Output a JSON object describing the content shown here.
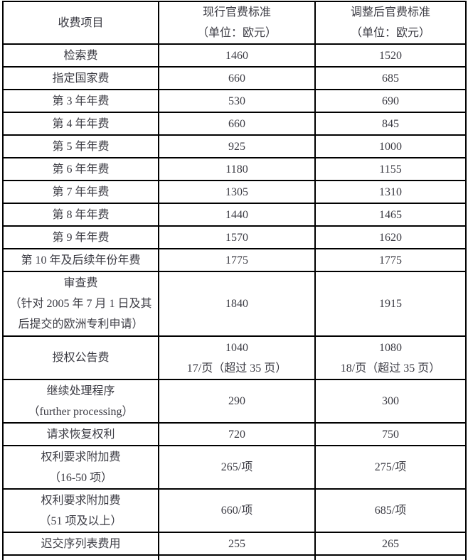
{
  "page": {
    "background": "#ffffff",
    "text_color": "#3b3b43",
    "border_color": "#000000"
  },
  "table": {
    "header": {
      "item": [
        "收费项目"
      ],
      "current": [
        "现行官费标准",
        "（单位：欧元）"
      ],
      "adjusted": [
        "调整后官费标准",
        "（单位：欧元）"
      ]
    },
    "rows": [
      {
        "item": [
          "检索费"
        ],
        "current": [
          "1460"
        ],
        "adjusted": [
          "1520"
        ]
      },
      {
        "item": [
          "指定国家费"
        ],
        "current": [
          "660"
        ],
        "adjusted": [
          "685"
        ]
      },
      {
        "item": [
          "第 3 年年费"
        ],
        "current": [
          "530"
        ],
        "adjusted": [
          "690"
        ]
      },
      {
        "item": [
          "第 4 年年费"
        ],
        "current": [
          "660"
        ],
        "adjusted": [
          "845"
        ]
      },
      {
        "item": [
          "第 5 年年费"
        ],
        "current": [
          "925"
        ],
        "adjusted": [
          "1000"
        ]
      },
      {
        "item": [
          "第 6 年年费"
        ],
        "current": [
          "1180"
        ],
        "adjusted": [
          "1155"
        ]
      },
      {
        "item": [
          "第 7 年年费"
        ],
        "current": [
          "1305"
        ],
        "adjusted": [
          "1310"
        ]
      },
      {
        "item": [
          "第 8 年年费"
        ],
        "current": [
          "1440"
        ],
        "adjusted": [
          "1465"
        ]
      },
      {
        "item": [
          "第 9 年年费"
        ],
        "current": [
          "1570"
        ],
        "adjusted": [
          "1620"
        ]
      },
      {
        "item": [
          "第 10 年及后续年份年费"
        ],
        "current": [
          "1775"
        ],
        "adjusted": [
          "1775"
        ]
      },
      {
        "item": [
          "审查费",
          "（针对 2005 年 7 月 1 日及其",
          "后提交的欧洲专利申请）"
        ],
        "current": [
          "1840"
        ],
        "adjusted": [
          "1915"
        ]
      },
      {
        "item": [
          "授权公告费"
        ],
        "current": [
          "1040",
          "17/页（超过 35 页）"
        ],
        "adjusted": [
          "1080",
          "18/页（超过 35 页）"
        ]
      },
      {
        "item": [
          "继续处理程序",
          "（further processing）"
        ],
        "current": [
          "290"
        ],
        "adjusted": [
          "300"
        ]
      },
      {
        "item": [
          "请求恢复权利"
        ],
        "current": [
          "720"
        ],
        "adjusted": [
          "750"
        ]
      },
      {
        "item": [
          "权利要求附加费",
          "（16-50 项）"
        ],
        "current": [
          "265/项"
        ],
        "adjusted": [
          "275/项"
        ]
      },
      {
        "item": [
          "权利要求附加费",
          "（51 项及以上）"
        ],
        "current": [
          "660/项"
        ],
        "adjusted": [
          "685/项"
        ]
      },
      {
        "item": [
          "迟交序列表费用"
        ],
        "current": [
          "255"
        ],
        "adjusted": [
          "265"
        ]
      }
    ]
  }
}
